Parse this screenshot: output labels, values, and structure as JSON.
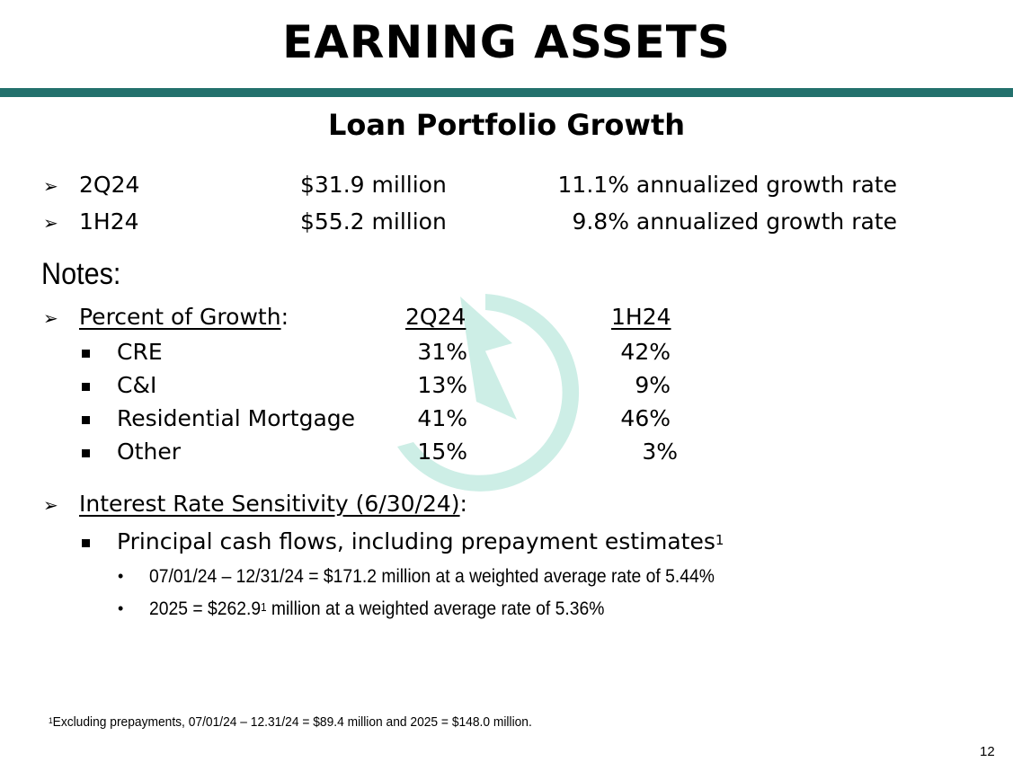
{
  "title": "EARNING ASSETS",
  "subtitle": "Loan Portfolio Growth",
  "accent_color": "#23716d",
  "watermark_color": "#cdeee6",
  "growth": [
    {
      "period": "2Q24",
      "amount": "$31.9 million",
      "rate": "11.1% annualized growth rate"
    },
    {
      "period": "1H24",
      "amount": "$55.2 million",
      "rate": "9.8% annualized growth rate"
    }
  ],
  "notes_label": "Notes:",
  "percent_section": {
    "label": "Percent of Growth",
    "colon": ":",
    "col1_header": "2Q24",
    "col2_header": "1H24",
    "rows": [
      {
        "name": "CRE",
        "q": "31%",
        "h": "42%"
      },
      {
        "name": "C&I",
        "q": "13%",
        "h": "9%"
      },
      {
        "name": "Residential Mortgage",
        "q": "41%",
        "h": "46%"
      },
      {
        "name": "Other",
        "q": "15%",
        "h": "3%"
      }
    ]
  },
  "sensitivity": {
    "label": "Interest Rate Sensitivity (6/30/24)",
    "colon": ":",
    "bullet": "Principal cash flows, including prepayment estimates",
    "bullet_sup": "1",
    "sub1": "07/01/24 – 12/31/24 = $171.2 million at a weighted average rate of 5.44%",
    "sub2_pre": "2025 = $262.9",
    "sub2_sup": "1",
    "sub2_post": " million at a weighted average rate of 5.36%"
  },
  "footnote": {
    "sup": "1",
    "text": "Excluding prepayments, 07/01/24 – 12.31/24 = $89.4 million and 2025 = $148.0 million."
  },
  "page_number": "12"
}
